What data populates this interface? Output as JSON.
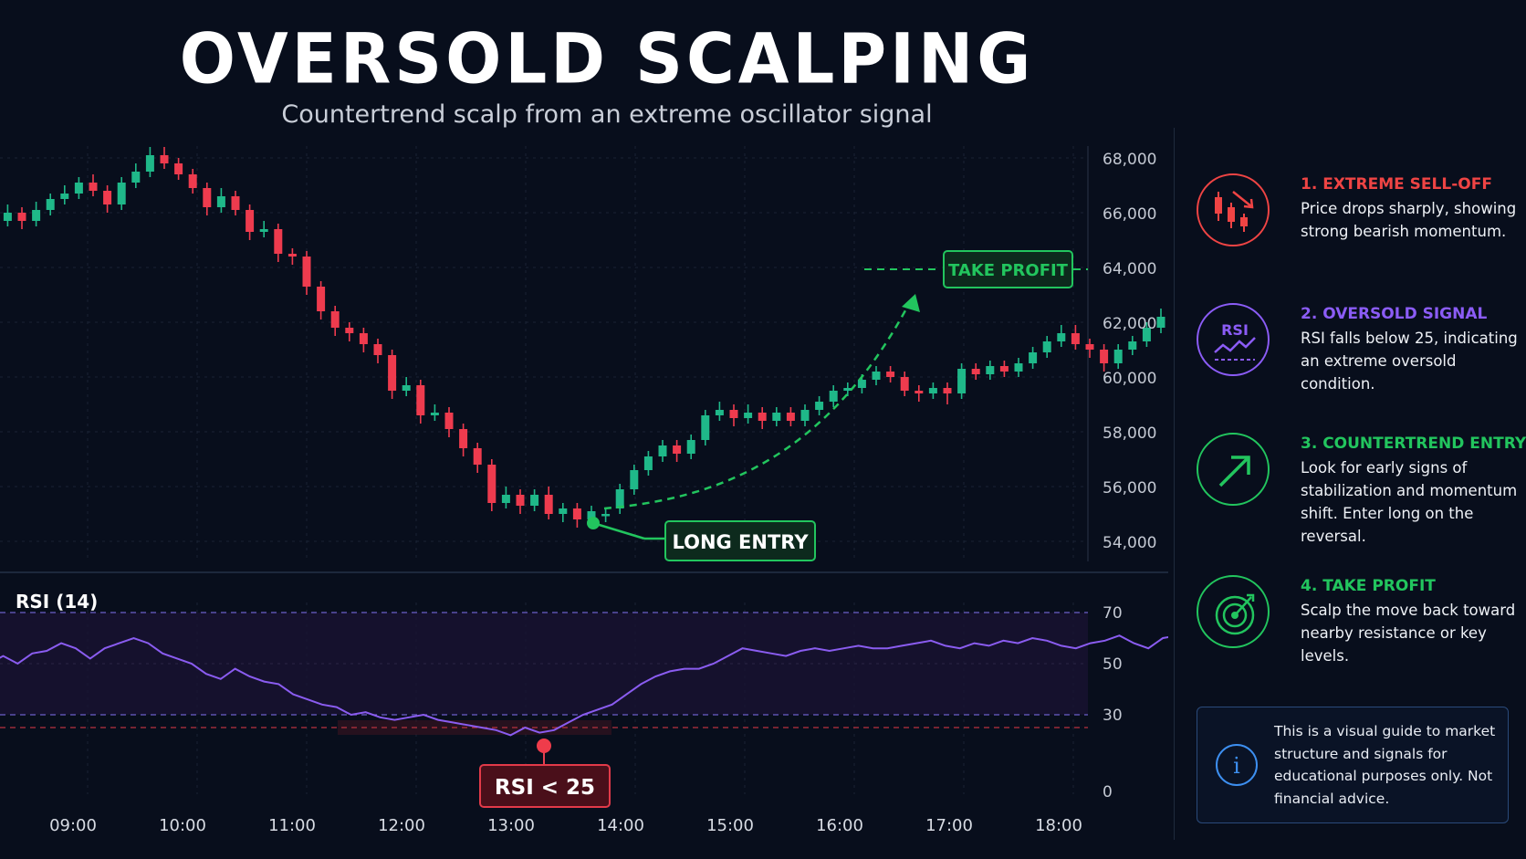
{
  "title": "OVERSOLD SCALPING",
  "subtitle": "Countertrend scalp from an extreme oscillator signal",
  "colors": {
    "background": "#080e1c",
    "bull": "#1fb889",
    "bear": "#ee3b4e",
    "rsi_line": "#8a5cf0",
    "green": "#22c55e",
    "red": "#ef4444",
    "purple": "#8b5cf6",
    "blue": "#3d8ff0"
  },
  "chart_data": [
    {
      "type": "candlestick",
      "x_labels": [
        "09:00",
        "10:00",
        "11:00",
        "12:00",
        "13:00",
        "14:00",
        "15:00",
        "16:00",
        "17:00",
        "18:00"
      ],
      "y_ticks": [
        "68,000",
        "66,000",
        "64,000",
        "62,000",
        "60,000",
        "58,000",
        "56,000",
        "54,000"
      ],
      "ylim": [
        53200,
        68600
      ],
      "y_tick_values": [
        68000,
        66000,
        64000,
        62000,
        60000,
        58000,
        56000,
        54000
      ],
      "x_range_hours": [
        8.25,
        18.35
      ],
      "candles": [
        [
          8.4,
          66900,
          67100,
          67300,
          66700
        ],
        [
          8.53,
          67100,
          66800,
          67300,
          66500
        ],
        [
          8.66,
          66800,
          66200,
          67000,
          66000
        ],
        [
          8.79,
          66200,
          65700,
          66400,
          65300
        ],
        [
          8.92,
          65700,
          66000,
          66300,
          65500
        ],
        [
          9.05,
          66000,
          65700,
          66200,
          65400
        ],
        [
          9.18,
          65700,
          66100,
          66400,
          65500
        ],
        [
          9.31,
          66100,
          66500,
          66700,
          65900
        ],
        [
          9.44,
          66500,
          66700,
          67000,
          66300
        ],
        [
          9.57,
          66700,
          67100,
          67300,
          66500
        ],
        [
          9.7,
          67100,
          66800,
          67400,
          66600
        ],
        [
          9.83,
          66800,
          66300,
          67000,
          66000
        ],
        [
          9.96,
          66300,
          67100,
          67300,
          66100
        ],
        [
          10.09,
          67100,
          67500,
          67800,
          66900
        ],
        [
          10.22,
          67500,
          68100,
          68400,
          67300
        ],
        [
          10.35,
          68100,
          67800,
          68400,
          67600
        ],
        [
          10.48,
          67800,
          67400,
          68000,
          67200
        ],
        [
          10.61,
          67400,
          66900,
          67600,
          66700
        ],
        [
          10.74,
          66900,
          66200,
          67100,
          65900
        ],
        [
          10.87,
          66200,
          66600,
          66900,
          66000
        ],
        [
          11.0,
          66600,
          66100,
          66800,
          65900
        ],
        [
          11.13,
          66100,
          65300,
          66300,
          65000
        ],
        [
          11.26,
          65300,
          65400,
          65700,
          65100
        ],
        [
          11.39,
          65400,
          64500,
          65600,
          64200
        ],
        [
          11.52,
          64500,
          64400,
          64700,
          64100
        ],
        [
          11.65,
          64400,
          63300,
          64600,
          63000
        ],
        [
          11.78,
          63300,
          62400,
          63500,
          62100
        ],
        [
          11.91,
          62400,
          61800,
          62600,
          61500
        ],
        [
          12.04,
          61800,
          61600,
          62000,
          61300
        ],
        [
          12.17,
          61600,
          61200,
          61800,
          60900
        ],
        [
          12.3,
          61200,
          60800,
          61400,
          60500
        ],
        [
          12.43,
          60800,
          59500,
          61000,
          59200
        ],
        [
          12.56,
          59500,
          59700,
          60000,
          59300
        ],
        [
          12.69,
          59700,
          58600,
          59900,
          58300
        ],
        [
          12.82,
          58600,
          58700,
          59000,
          58400
        ],
        [
          12.95,
          58700,
          58100,
          58900,
          57800
        ],
        [
          13.08,
          58100,
          57400,
          58300,
          57100
        ],
        [
          13.21,
          57400,
          56800,
          57600,
          56500
        ],
        [
          13.34,
          56800,
          55400,
          57000,
          55100
        ],
        [
          13.47,
          55400,
          55700,
          56000,
          55200
        ],
        [
          13.6,
          55700,
          55300,
          55900,
          55000
        ],
        [
          13.73,
          55300,
          55700,
          55900,
          55100
        ],
        [
          13.86,
          55700,
          55000,
          56000,
          54800
        ],
        [
          13.99,
          55000,
          55200,
          55400,
          54700
        ],
        [
          14.12,
          55200,
          54800,
          55400,
          54500
        ],
        [
          14.25,
          54800,
          55100,
          55300,
          54600
        ],
        [
          14.38,
          55000,
          55000,
          55200,
          54700
        ],
        [
          14.51,
          55200,
          55900,
          56100,
          55000
        ],
        [
          14.64,
          55900,
          56600,
          56800,
          55700
        ],
        [
          14.77,
          56600,
          57100,
          57300,
          56400
        ],
        [
          14.9,
          57100,
          57500,
          57700,
          56900
        ],
        [
          15.03,
          57500,
          57200,
          57700,
          56900
        ],
        [
          15.16,
          57200,
          57700,
          57900,
          57000
        ],
        [
          15.29,
          57700,
          58600,
          58800,
          57500
        ],
        [
          15.42,
          58600,
          58800,
          59100,
          58400
        ],
        [
          15.55,
          58800,
          58500,
          59000,
          58200
        ],
        [
          15.68,
          58500,
          58700,
          59000,
          58300
        ],
        [
          15.81,
          58700,
          58400,
          58900,
          58100
        ],
        [
          15.94,
          58400,
          58700,
          58900,
          58200
        ],
        [
          16.07,
          58700,
          58400,
          58900,
          58200
        ],
        [
          16.2,
          58400,
          58800,
          59000,
          58200
        ],
        [
          16.33,
          58800,
          59100,
          59300,
          58600
        ],
        [
          16.46,
          59100,
          59500,
          59700,
          58900
        ],
        [
          16.59,
          59500,
          59600,
          59800,
          59300
        ],
        [
          16.72,
          59600,
          59900,
          60100,
          59400
        ],
        [
          16.85,
          59900,
          60200,
          60400,
          59700
        ],
        [
          16.98,
          60200,
          60000,
          60400,
          59800
        ],
        [
          17.11,
          60000,
          59500,
          60200,
          59300
        ],
        [
          17.24,
          59500,
          59400,
          59700,
          59100
        ],
        [
          17.37,
          59400,
          59600,
          59800,
          59200
        ],
        [
          17.5,
          59600,
          59400,
          59800,
          59000
        ],
        [
          17.63,
          59400,
          60300,
          60500,
          59200
        ],
        [
          17.76,
          60300,
          60100,
          60500,
          59900
        ],
        [
          17.89,
          60100,
          60400,
          60600,
          59900
        ],
        [
          18.02,
          60400,
          60200,
          60600,
          60000
        ],
        [
          18.15,
          60200,
          60500,
          60700,
          60000
        ],
        [
          18.28,
          60500,
          60900,
          61100,
          60300
        ],
        [
          18.41,
          60900,
          61300,
          61500,
          60700
        ],
        [
          18.54,
          61300,
          61600,
          61900,
          61100
        ],
        [
          18.67,
          61600,
          61200,
          61900,
          61000
        ],
        [
          18.8,
          61200,
          61000,
          61400,
          60700
        ],
        [
          18.93,
          61000,
          60500,
          61200,
          60200
        ],
        [
          19.06,
          60500,
          61000,
          61200,
          60300
        ],
        [
          19.19,
          61000,
          61300,
          61500,
          60800
        ],
        [
          19.32,
          61300,
          61800,
          62000,
          61100
        ],
        [
          19.45,
          61800,
          62200,
          62500,
          61600
        ]
      ],
      "annotations": {
        "long_entry": {
          "label": "LONG ENTRY",
          "x": 14.25,
          "y": 54600
        },
        "take_profit": {
          "label": "TAKE PROFIT",
          "y": 64000
        }
      }
    },
    {
      "type": "line",
      "title": "RSI (14)",
      "y_ticks": [
        "70",
        "50",
        "30",
        "0"
      ],
      "y_tick_values": [
        70,
        50,
        30,
        0
      ],
      "ylim": [
        0,
        70
      ],
      "levels": [
        70,
        30,
        25
      ],
      "series": [
        {
          "values": [
            58,
            60,
            56,
            50,
            53,
            50,
            54,
            55,
            58,
            56,
            52,
            56,
            58,
            60,
            58,
            54,
            52,
            50,
            46,
            44,
            48,
            45,
            43,
            42,
            38,
            36,
            34,
            33,
            30,
            31,
            29,
            28,
            29,
            30,
            28,
            27,
            26,
            25,
            24,
            22,
            25,
            23,
            24,
            27,
            30,
            32,
            34,
            38,
            42,
            45,
            47,
            48,
            48,
            50,
            53,
            56,
            55,
            54,
            53,
            55,
            56,
            55,
            56,
            57,
            56,
            56,
            57,
            58,
            59,
            57,
            56,
            58,
            57,
            59,
            58,
            60,
            59,
            57,
            56,
            58,
            59,
            61,
            58,
            56,
            60,
            61
          ],
          "x_start": 8.35,
          "x_end": 19.6
        }
      ],
      "annotation": {
        "label": "RSI < 25",
        "x": 13.85,
        "y": 22
      }
    }
  ],
  "sidebar": {
    "steps": [
      {
        "title": "1. EXTREME SELL-OFF",
        "desc": "Price drops sharply, showing strong bearish momentum.",
        "color": "#ef4444",
        "icon": "falling-candles-icon"
      },
      {
        "title": "2. OVERSOLD SIGNAL",
        "desc": "RSI falls below 25, indicating an extreme oversold condition.",
        "color": "#8b5cf6",
        "icon": "rsi-icon",
        "icon_text": "RSI"
      },
      {
        "title": "3. COUNTERTREND ENTRY",
        "desc": "Look for early signs of stabilization and momentum shift. Enter long on the reversal.",
        "color": "#22c55e",
        "icon": "arrow-up-right-icon"
      },
      {
        "title": "4. TAKE PROFIT",
        "desc": "Scalp the move back toward nearby resistance or key levels.",
        "color": "#22c55e",
        "icon": "target-icon"
      }
    ],
    "disclaimer": "This is a visual guide to market structure and signals for educational purposes only. Not financial advice.",
    "disclaimer_icon": "info-icon",
    "disclaimer_icon_text": "i"
  }
}
